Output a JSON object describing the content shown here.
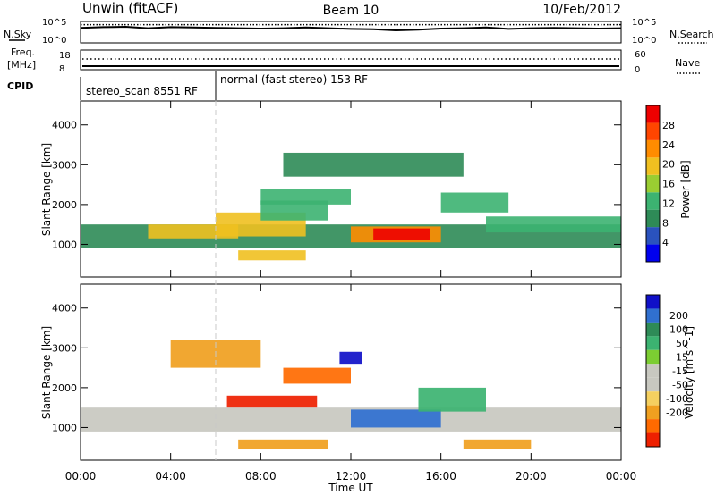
{
  "chart_data": [
    {
      "type": "line",
      "panel": "noise_search",
      "left_label": "N.Sky",
      "right_label": "N.Search",
      "left_ticks": [
        "10^5",
        "10^0"
      ],
      "right_ticks": [
        "10^5",
        "10^0"
      ],
      "x_hours": [
        0,
        1,
        2,
        3,
        4,
        5,
        6,
        7,
        8,
        9,
        10,
        11,
        12,
        13,
        14,
        15,
        16,
        17,
        18,
        19,
        20,
        21,
        22,
        23,
        24
      ],
      "y_log_sky": [
        3.7,
        3.9,
        4.0,
        3.6,
        3.9,
        3.8,
        3.7,
        3.6,
        3.5,
        3.6,
        3.8,
        3.6,
        3.4,
        3.3,
        3.0,
        3.2,
        3.5,
        3.6,
        3.8,
        3.4,
        3.6,
        3.7,
        3.6,
        3.5,
        3.6
      ],
      "y_log_search": [
        4.6,
        4.6,
        4.6,
        4.6,
        4.6,
        4.6,
        4.6,
        4.6,
        4.6,
        4.6,
        4.6,
        4.6,
        4.6,
        4.6,
        4.6,
        4.6,
        4.6,
        4.6,
        4.6,
        4.6,
        4.6,
        4.6,
        4.6,
        4.6,
        4.6
      ]
    },
    {
      "type": "line",
      "panel": "freq_nave",
      "left_label_1": "Freq.",
      "left_label_2": "[MHz]",
      "right_label": "Nave",
      "left_ticks": [
        "18",
        "8"
      ],
      "right_ticks": [
        "60",
        "0"
      ],
      "x_hours": [
        0,
        24
      ],
      "freq_mhz": [
        8.5,
        8.5
      ],
      "nave": [
        12,
        12
      ]
    },
    {
      "type": "table",
      "panel": "cpid",
      "label": "CPID",
      "segments": [
        {
          "start_hour": 0,
          "end_hour": 6,
          "text": "stereo_scan 8551 RF"
        },
        {
          "start_hour": 6,
          "end_hour": 24,
          "text": "normal (fast stereo) 153 RF"
        }
      ]
    },
    {
      "type": "heatmap",
      "panel": "power",
      "ylabel": "Slant Range [km]",
      "ylim": [
        180,
        4600
      ],
      "yticks": [
        1000,
        2000,
        3000,
        4000
      ],
      "colorbar_label": "Power [dB]",
      "colorbar_ticks": [
        4,
        8,
        12,
        16,
        20,
        24,
        28
      ],
      "colorbar_range": [
        0,
        32
      ],
      "colorbar_colors": [
        "#0000ee",
        "#2a52be",
        "#2e8b57",
        "#3cb371",
        "#9acd32",
        "#f0c020",
        "#ff8c00",
        "#ff4500",
        "#ee0000"
      ],
      "bands": [
        {
          "x": [
            0,
            24
          ],
          "y": [
            900,
            1500
          ],
          "level": 9
        },
        {
          "x": [
            3,
            7
          ],
          "y": [
            1150,
            1500
          ],
          "level": 18
        },
        {
          "x": [
            6,
            10
          ],
          "y": [
            1200,
            1800
          ],
          "level": 18
        },
        {
          "x": [
            8,
            11
          ],
          "y": [
            1600,
            2100
          ],
          "level": 14
        },
        {
          "x": [
            12,
            16
          ],
          "y": [
            1050,
            1450
          ],
          "level": 22
        },
        {
          "x": [
            13,
            15.5
          ],
          "y": [
            1100,
            1400
          ],
          "level": 29
        },
        {
          "x": [
            7,
            10
          ],
          "y": [
            600,
            850
          ],
          "level": 20
        },
        {
          "x": [
            8,
            12
          ],
          "y": [
            2000,
            2400
          ],
          "level": 12
        },
        {
          "x": [
            9,
            17
          ],
          "y": [
            2700,
            3300
          ],
          "level": 9
        },
        {
          "x": [
            16,
            19
          ],
          "y": [
            1800,
            2300
          ],
          "level": 12
        },
        {
          "x": [
            18,
            24
          ],
          "y": [
            1300,
            1700
          ],
          "level": 13
        }
      ]
    },
    {
      "type": "heatmap",
      "panel": "velocity",
      "ylabel": "Slant Range [km]",
      "ylim": [
        180,
        4600
      ],
      "yticks": [
        1000,
        2000,
        3000,
        4000
      ],
      "colorbar_label": "Velocity [m s^-1]",
      "colorbar_ticks": [
        "200",
        "100",
        "50",
        "15",
        "-15",
        "-50",
        "-100",
        "-200"
      ],
      "colorbar_colors": [
        "#1010c8",
        "#3070d0",
        "#2e8b57",
        "#3cb371",
        "#7ccd32",
        "#c8c8c0",
        "#c8c8c0",
        "#f5d060",
        "#f0a020",
        "#ff6a00",
        "#ee2000"
      ],
      "bands": [
        {
          "x": [
            0,
            24
          ],
          "y": [
            900,
            1500
          ],
          "value": 0
        },
        {
          "x": [
            6.5,
            10.5
          ],
          "y": [
            1500,
            1800
          ],
          "value": -200
        },
        {
          "x": [
            12,
            16
          ],
          "y": [
            1000,
            1450
          ],
          "value": 100
        },
        {
          "x": [
            15,
            18
          ],
          "y": [
            1400,
            2000
          ],
          "value": 50
        },
        {
          "x": [
            11.5,
            12.5
          ],
          "y": [
            2600,
            2900
          ],
          "value": 200
        },
        {
          "x": [
            4,
            8
          ],
          "y": [
            2500,
            3200
          ],
          "value": -50
        },
        {
          "x": [
            7,
            11
          ],
          "y": [
            450,
            700
          ],
          "value": -50
        },
        {
          "x": [
            9,
            12
          ],
          "y": [
            2100,
            2500
          ],
          "value": -100
        },
        {
          "x": [
            17,
            20
          ],
          "y": [
            450,
            700
          ],
          "value": -50
        }
      ]
    }
  ],
  "header": {
    "title_left": "Unwin (fitACF)",
    "title_center": "Beam 10",
    "title_right": "10/Feb/2012"
  },
  "xaxis": {
    "label": "Time UT",
    "ticks": [
      "00:00",
      "04:00",
      "08:00",
      "12:00",
      "16:00",
      "20:00",
      "00:00"
    ],
    "range_hours": [
      0,
      24
    ]
  },
  "markers": {
    "dashed_time_hour": 6
  }
}
